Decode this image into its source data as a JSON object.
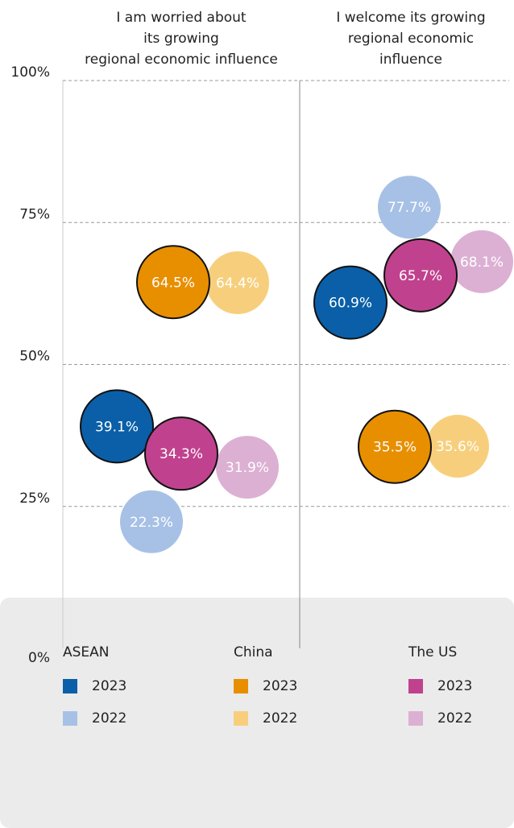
{
  "chart_data": {
    "type": "bubble",
    "categories": [
      "I am worried about its growing regional economic influence",
      "I welcome its growing regional economic influence"
    ],
    "ylim": [
      0,
      100
    ],
    "yticks": [
      {
        "value": 0,
        "label": "0%"
      },
      {
        "value": 25,
        "label": "25%"
      },
      {
        "value": 50,
        "label": "50%"
      },
      {
        "value": 75,
        "label": "75%"
      },
      {
        "value": 100,
        "label": "100%"
      }
    ],
    "grid": true,
    "groups": [
      {
        "name": "ASEAN",
        "series": [
          {
            "name": "2023",
            "color": "#0a5fa8",
            "values": [
              39.1,
              60.9
            ],
            "value_labels": [
              "39.1%",
              "60.9%"
            ]
          },
          {
            "name": "2022",
            "color": "#a7c1e6",
            "values": [
              22.3,
              77.7
            ],
            "value_labels": [
              "22.3%",
              "77.7%"
            ]
          }
        ]
      },
      {
        "name": "China",
        "series": [
          {
            "name": "2023",
            "color": "#e88f00",
            "values": [
              64.5,
              35.5
            ],
            "value_labels": [
              "64.5%",
              "35.5%"
            ]
          },
          {
            "name": "2022",
            "color": "#f7cf7c",
            "values": [
              64.4,
              35.6
            ],
            "value_labels": [
              "64.4%",
              "35.6%"
            ]
          }
        ]
      },
      {
        "name": "The US",
        "series": [
          {
            "name": "2023",
            "color": "#c0428e",
            "values": [
              34.3,
              65.7
            ],
            "value_labels": [
              "34.3%",
              "65.7%"
            ]
          },
          {
            "name": "2022",
            "color": "#dcb0d3",
            "values": [
              31.9,
              68.1
            ],
            "value_labels": [
              "31.9%",
              "68.1%"
            ]
          }
        ]
      }
    ]
  }
}
